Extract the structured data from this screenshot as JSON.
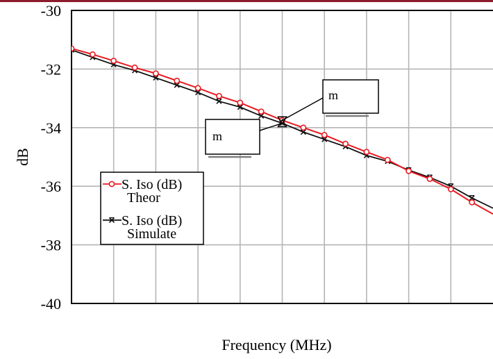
{
  "colors": {
    "theory": "#e8191f",
    "simulated": "#111111",
    "grid": "#b5b5b5",
    "top_bar": "#8c1a2a",
    "marker_shadow": "#7f7f7f"
  },
  "chart_data": {
    "type": "line",
    "title": "",
    "xlabel": "Frequency (MHz)",
    "ylabel": "dB",
    "ylim": [
      -40,
      -30
    ],
    "yticks": [
      -30,
      -32,
      -34,
      -36,
      -38,
      -40
    ],
    "xlim": [
      0,
      10
    ],
    "x_tick_labels_shown": false,
    "grid": true,
    "legend_position": "left-middle",
    "series": [
      {
        "name": "S. Iso (dB) Theor",
        "legend_line1": "S. Iso (dB)",
        "legend_line2": "Theor",
        "color": "#e8191f",
        "marker": "circle",
        "x": [
          0,
          0.5,
          1,
          1.5,
          2,
          2.5,
          3,
          3.5,
          4,
          4.5,
          5,
          5.5,
          6,
          6.5,
          7,
          7.5,
          8,
          8.5,
          9,
          9.5,
          10
        ],
        "values": [
          -31.3,
          -31.5,
          -31.72,
          -31.95,
          -32.15,
          -32.4,
          -32.65,
          -32.92,
          -33.15,
          -33.45,
          -33.75,
          -34.0,
          -34.25,
          -34.55,
          -34.83,
          -35.1,
          -35.48,
          -35.75,
          -36.1,
          -36.55,
          -36.95
        ]
      },
      {
        "name": "S. Iso (dB) Simulate",
        "legend_line1": "S. Iso (dB)",
        "legend_line2": "Simulate",
        "color": "#111111",
        "marker": "x",
        "x": [
          0,
          0.5,
          1,
          1.5,
          2,
          2.5,
          3,
          3.5,
          4,
          4.5,
          5,
          5.5,
          6,
          6.5,
          7,
          7.5,
          8,
          8.5,
          9,
          9.5,
          10
        ],
        "values": [
          -31.35,
          -31.6,
          -31.85,
          -32.05,
          -32.3,
          -32.55,
          -32.8,
          -33.1,
          -33.3,
          -33.6,
          -33.85,
          -34.15,
          -34.4,
          -34.65,
          -34.95,
          -35.15,
          -35.45,
          -35.7,
          -36.0,
          -36.4,
          -36.75
        ]
      }
    ],
    "markers": [
      {
        "label": "m",
        "x": 5,
        "y": -33.75
      },
      {
        "label": "m",
        "x": 5,
        "y": -33.85
      }
    ]
  }
}
